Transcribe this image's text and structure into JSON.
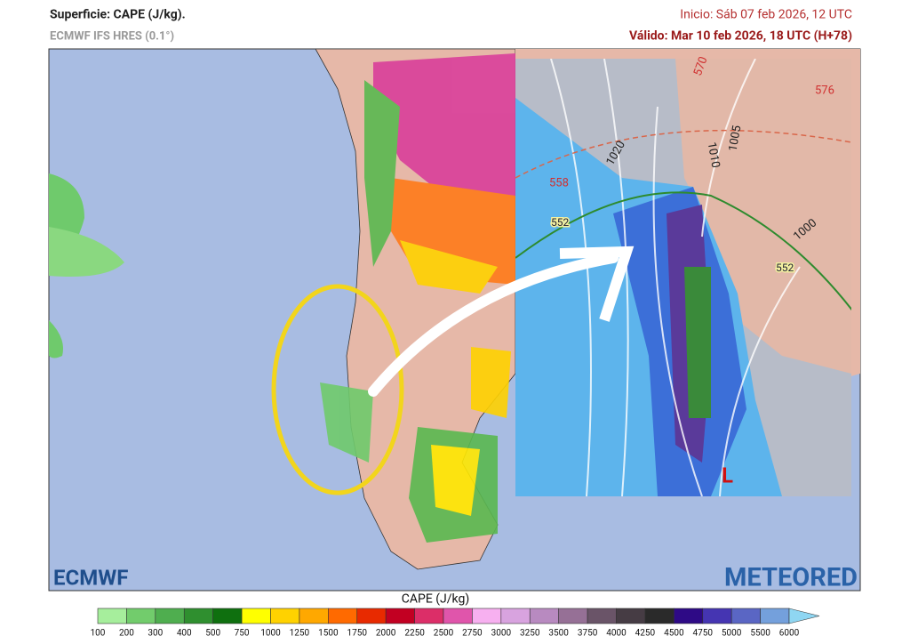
{
  "header": {
    "title": "Superficie: CAPE (J/kg).",
    "model": "ECMWF IFS HRES (0.1°)",
    "init": "Inicio: Sáb 07 feb 2026, 12 UTC",
    "valid": "Válido: Mar 10 feb 2026, 18 UTC (H+78)"
  },
  "logos": {
    "left": "ECMWF",
    "right": "METEORED"
  },
  "inset": {
    "contour_labels": [
      "1020",
      "1010",
      "1005",
      "1000",
      "558",
      "552",
      "552",
      "576",
      "570"
    ],
    "low_marker": "L"
  },
  "colorbar": {
    "label": "CAPE (J/kg)",
    "ticks": [
      100,
      200,
      300,
      400,
      500,
      750,
      1000,
      1250,
      1500,
      1750,
      2000,
      2250,
      2500,
      2750,
      3000,
      3250,
      3500,
      3750,
      4000,
      4250,
      4500,
      4750,
      5000,
      5500,
      6000
    ],
    "colors": [
      "#a6ee9c",
      "#72cc6c",
      "#4fae4f",
      "#2f8f2f",
      "#0f700f",
      "#ffff00",
      "#ffd200",
      "#ffa800",
      "#ff6a00",
      "#e82a00",
      "#c20022",
      "#dc2e68",
      "#e055ab",
      "#f7b0f0",
      "#d8a3df",
      "#b88ac0",
      "#967096",
      "#6a5468",
      "#463c44",
      "#2a2a2a",
      "#2e0a86",
      "#4535b2",
      "#5a66c4",
      "#74a0dc"
    ],
    "extend_color": "#8fd6f2"
  }
}
